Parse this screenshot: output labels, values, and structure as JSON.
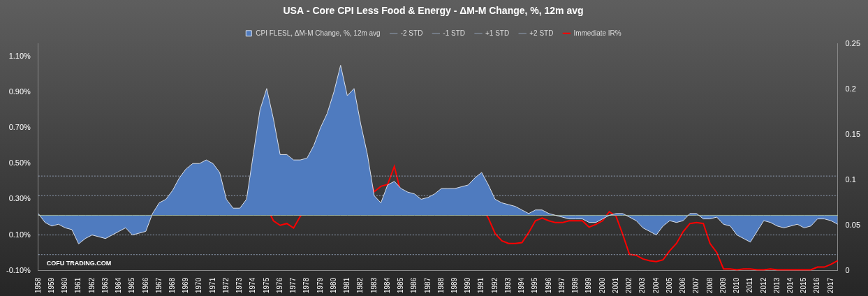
{
  "chart_data": {
    "type": "line",
    "title": "USA - Core CPI Less Food & Energy - ΔM-M Change, %, 12m avg",
    "annotation": "COFU TRADING.COM",
    "legend": "top",
    "grid": false,
    "categories": [
      "1958",
      null,
      "1959",
      null,
      "1960",
      null,
      "1961",
      null,
      "1962",
      null,
      "1963",
      null,
      "1964",
      null,
      "1965",
      null,
      "1966",
      null,
      "1967",
      null,
      "1968",
      null,
      "1969",
      null,
      "1970",
      null,
      "1971",
      null,
      "1972",
      null,
      "1973",
      null,
      "1974",
      null,
      "1975",
      null,
      "1976",
      null,
      "1977",
      null,
      "1978",
      null,
      "1979",
      null,
      "1980",
      null,
      "1981",
      null,
      "1982",
      null,
      "1983",
      null,
      "1984",
      null,
      "1985",
      null,
      "1986",
      null,
      "1987",
      null,
      "1988",
      null,
      "1989",
      null,
      "1990",
      null,
      "1991",
      null,
      "1992",
      null,
      "1993",
      null,
      "1994",
      null,
      "1995",
      null,
      "1996",
      null,
      "1997",
      null,
      "1998",
      null,
      "1999",
      null,
      "2000",
      null,
      "2001",
      null,
      "2002",
      null,
      "2003",
      null,
      "2004",
      null,
      "2005",
      null,
      "2006",
      null,
      "2007",
      null,
      "2008",
      null,
      "2009",
      null,
      "2010",
      null,
      "2011",
      null,
      "2012",
      null,
      "2013",
      null,
      "2014",
      null,
      "2015",
      null,
      "2016",
      null,
      "2017",
      null
    ],
    "ylim": [
      -0.1,
      1.17
    ],
    "yticks": [
      {
        "value": -0.1,
        "label": "-0.10%"
      },
      {
        "value": 0.1,
        "label": "0.10%"
      },
      {
        "value": 0.3,
        "label": "0.30%"
      },
      {
        "value": 0.5,
        "label": "0.50%"
      },
      {
        "value": 0.7,
        "label": "0.70%"
      },
      {
        "value": 0.9,
        "label": "0.90%"
      },
      {
        "value": 1.1,
        "label": "1.10%"
      }
    ],
    "y2lim": [
      0,
      0.25
    ],
    "y2ticks": [
      0,
      0.05,
      0.1,
      0.15,
      0.2,
      0.25
    ],
    "mean": {
      "value": 0.21,
      "color": "#e6e67a"
    },
    "std_lines": [
      {
        "name": "-2 STD",
        "value": -0.01,
        "color": "#8f9db3",
        "line_style": "dotted"
      },
      {
        "name": "-1 STD",
        "value": 0.1,
        "color": "#8f9db3",
        "line_style": "dotted"
      },
      {
        "name": "+1 STD",
        "value": 0.32,
        "color": "#8f9db3",
        "line_style": "dotted"
      },
      {
        "name": "+2 STD",
        "value": 0.43,
        "color": "#8f9db3",
        "line_style": "dotted"
      }
    ],
    "series": [
      {
        "name": "CPI FLESL, ΔM-M Change, %, 12m avg",
        "type": "area",
        "color": "#4f7bbf",
        "axis": "y",
        "values": [
          0.22,
          0.17,
          0.15,
          0.16,
          0.14,
          0.13,
          0.05,
          0.08,
          0.1,
          0.09,
          0.08,
          0.1,
          0.12,
          0.14,
          0.1,
          0.11,
          0.12,
          0.22,
          0.28,
          0.3,
          0.35,
          0.42,
          0.47,
          0.5,
          0.5,
          0.52,
          0.5,
          0.45,
          0.3,
          0.25,
          0.25,
          0.3,
          0.55,
          0.8,
          0.92,
          0.75,
          0.55,
          0.55,
          0.52,
          0.52,
          0.53,
          0.6,
          0.7,
          0.78,
          0.9,
          1.05,
          0.88,
          0.92,
          0.72,
          0.55,
          0.32,
          0.28,
          0.38,
          0.4,
          0.36,
          0.34,
          0.33,
          0.3,
          0.31,
          0.33,
          0.36,
          0.36,
          0.36,
          0.37,
          0.38,
          0.42,
          0.45,
          0.38,
          0.3,
          0.28,
          0.27,
          0.26,
          0.24,
          0.22,
          0.24,
          0.24,
          0.22,
          0.21,
          0.2,
          0.19,
          0.19,
          0.19,
          0.17,
          0.17,
          0.19,
          0.21,
          0.22,
          0.22,
          0.2,
          0.18,
          0.14,
          0.12,
          0.1,
          0.15,
          0.18,
          0.17,
          0.18,
          0.22,
          0.22,
          0.19,
          0.19,
          0.2,
          0.16,
          0.15,
          0.1,
          0.08,
          0.06,
          0.12,
          0.18,
          0.17,
          0.15,
          0.14,
          0.15,
          0.16,
          0.14,
          0.15,
          0.19,
          0.19,
          0.18,
          0.16
        ]
      },
      {
        "name": "Immediate IR%",
        "type": "line",
        "color": "#ff0000",
        "axis": "y2",
        "values": [
          null,
          null,
          null,
          null,
          null,
          null,
          null,
          null,
          null,
          null,
          null,
          null,
          null,
          null,
          null,
          null,
          null,
          null,
          null,
          null,
          null,
          null,
          null,
          null,
          null,
          null,
          null,
          null,
          null,
          null,
          null,
          null,
          null,
          null,
          0.07,
          0.055,
          0.05,
          0.052,
          0.047,
          0.06,
          0.068,
          0.08,
          0.1,
          0.11,
          0.16,
          0.1,
          0.19,
          0.18,
          0.15,
          0.11,
          0.087,
          0.093,
          0.095,
          0.115,
          0.085,
          0.08,
          0.079,
          0.064,
          0.062,
          0.066,
          0.067,
          0.079,
          0.09,
          0.09,
          0.083,
          0.081,
          0.07,
          0.058,
          0.041,
          0.033,
          0.03,
          0.03,
          0.031,
          0.042,
          0.055,
          0.058,
          0.055,
          0.053,
          0.053,
          0.055,
          0.055,
          0.055,
          0.048,
          0.051,
          0.055,
          0.065,
          0.06,
          0.04,
          0.018,
          0.017,
          0.013,
          0.011,
          0.01,
          0.012,
          0.022,
          0.03,
          0.043,
          0.052,
          0.053,
          0.052,
          0.03,
          0.02,
          0.002,
          0.002,
          0.001,
          0.002,
          0.002,
          0.001,
          0.001,
          0.002,
          0.001,
          0.001,
          0.001,
          0.001,
          0.001,
          0.001,
          0.004,
          0.004,
          0.007,
          0.011
        ]
      }
    ]
  }
}
